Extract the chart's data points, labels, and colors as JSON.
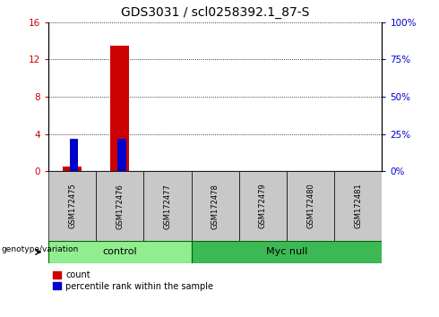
{
  "title": "GDS3031 / scl0258392.1_87-S",
  "samples": [
    "GSM172475",
    "GSM172476",
    "GSM172477",
    "GSM172478",
    "GSM172479",
    "GSM172480",
    "GSM172481"
  ],
  "counts": [
    0.5,
    13.5,
    0,
    0,
    0,
    0,
    0
  ],
  "percentiles": [
    22.0,
    21.5,
    0,
    0,
    0,
    0,
    0
  ],
  "ylim_left": [
    0,
    16
  ],
  "ylim_right": [
    0,
    100
  ],
  "yticks_left": [
    0,
    4,
    8,
    12,
    16
  ],
  "ytick_labels_left": [
    "0",
    "4",
    "8",
    "12",
    "16"
  ],
  "yticks_right_vals": [
    0,
    25,
    50,
    75,
    100
  ],
  "ytick_labels_right": [
    "0%",
    "25%",
    "50%",
    "75%",
    "100%"
  ],
  "groups": [
    {
      "label": "control",
      "start": 0,
      "end": 2,
      "color": "#90EE90"
    },
    {
      "label": "Myc null",
      "start": 3,
      "end": 6,
      "color": "#3CB954"
    }
  ],
  "bar_width": 0.4,
  "count_color": "#CC0000",
  "percentile_color": "#0000CC",
  "sample_bg_color": "#C8C8C8",
  "legend_count_label": "count",
  "legend_pct_label": "percentile rank within the sample",
  "group_label_prefix": "genotype/variation",
  "title_fontsize": 10,
  "tick_fontsize": 7.5,
  "label_fontsize": 8,
  "sample_label_fontsize": 6,
  "group_fontsize": 8
}
